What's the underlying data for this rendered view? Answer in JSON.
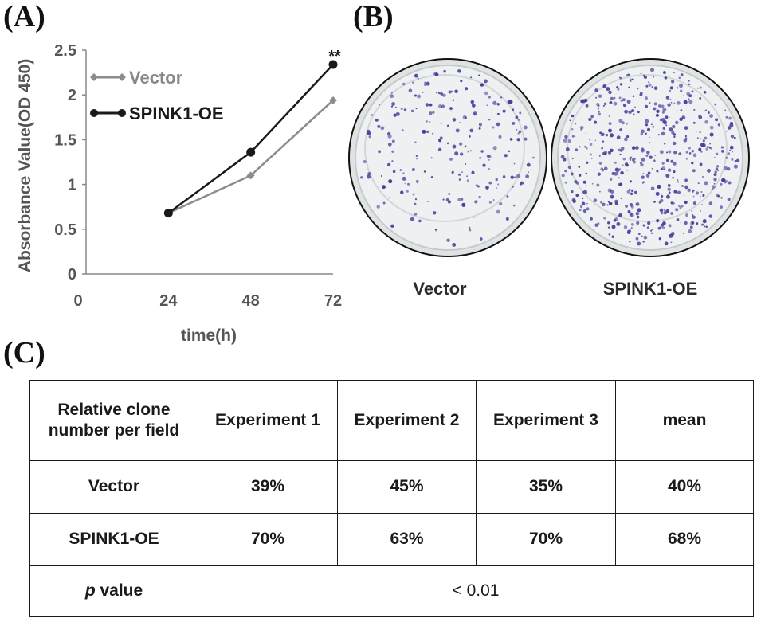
{
  "panel_labels": {
    "a": "(A)",
    "b": "(B)",
    "c": "(C)"
  },
  "chart_data": {
    "type": "line",
    "xlabel": "time(h)",
    "ylabel": "Absorbance Value(OD 450)",
    "x_ticks": [
      "0",
      "24",
      "48",
      "72"
    ],
    "y_ticks": [
      "0",
      "0.5",
      "1",
      "1.5",
      "2",
      "2.5"
    ],
    "xlim": [
      0,
      72
    ],
    "ylim": [
      0,
      2.5
    ],
    "x": [
      24,
      48,
      72
    ],
    "series": [
      {
        "name": "Vector",
        "values": [
          0.68,
          1.1,
          1.94
        ],
        "color": "#8c8c8c",
        "marker": "diamond"
      },
      {
        "name": "SPINK1-OE",
        "values": [
          0.68,
          1.36,
          2.34
        ],
        "color": "#1a1a1a",
        "marker": "circle"
      }
    ],
    "annotation": "**",
    "grid": false,
    "legend_position": "top-left"
  },
  "plates": [
    {
      "caption": "Vector"
    },
    {
      "caption": "SPINK1-OE"
    }
  ],
  "table": {
    "header": [
      "Relative clone number per field",
      "Experiment 1",
      "Experiment 2",
      "Experiment 3",
      "mean"
    ],
    "rows": [
      {
        "label": "Vector",
        "values": [
          "39%",
          "45%",
          "35%",
          "40%"
        ]
      },
      {
        "label": "SPINK1-OE",
        "values": [
          "70%",
          "63%",
          "70%",
          "68%"
        ]
      }
    ],
    "p_label_italic": "p",
    "p_label_rest": " value",
    "p_value": "< 0.01"
  },
  "colors": {
    "vector_line": "#8c8c8c",
    "spink_line": "#1a1a1a",
    "colony": "#4b3f9e"
  }
}
